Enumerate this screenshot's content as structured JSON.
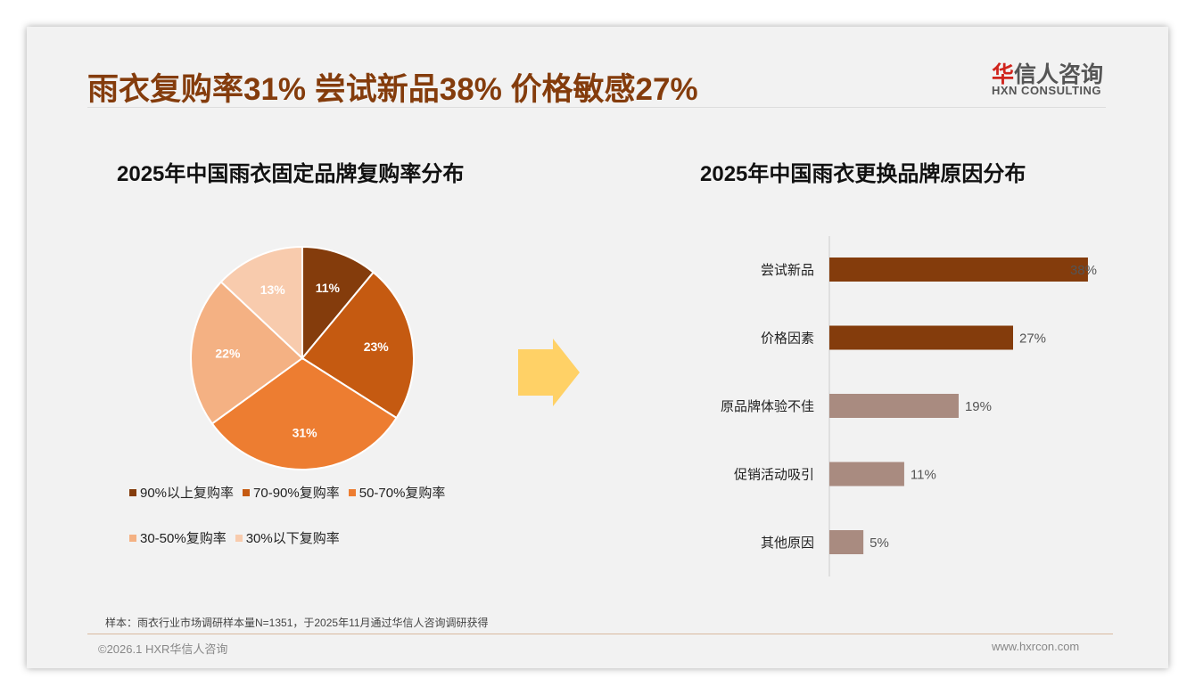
{
  "header": {
    "title": "雨衣复购率31% 尝试新品38% 价格敏感27%",
    "logo_cn_red": "华",
    "logo_cn": "信人咨询",
    "logo_en": "HXN CONSULTING"
  },
  "footer": {
    "note": "样本：雨衣行业市场调研样本量N=1351，于2025年11月通过华信人咨询调研获得",
    "copyright": "©2026.1 HXR华信人咨询",
    "website": "www.hxrcon.com"
  },
  "chart_data": [
    {
      "type": "pie",
      "title": "2025年中国雨衣固定品牌复购率分布",
      "categories": [
        "90%以上复购率",
        "70-90%复购率",
        "50-70%复购率",
        "30-50%复购率",
        "30%以下复购率"
      ],
      "values": [
        11,
        23,
        31,
        22,
        13
      ],
      "labels": [
        "11%",
        "23%",
        "31%",
        "22%",
        "13%"
      ],
      "colors": [
        "#843c0c",
        "#c55a11",
        "#ed7d31",
        "#f4b183",
        "#f8cbad"
      ],
      "legend": "bottom"
    },
    {
      "type": "bar",
      "orientation": "horizontal",
      "title": "2025年中国雨衣更换品牌原因分布",
      "categories": [
        "尝试新品",
        "价格因素",
        "原品牌体验不佳",
        "促销活动吸引",
        "其他原因"
      ],
      "values": [
        38,
        27,
        19,
        11,
        5
      ],
      "labels": [
        "38%",
        "27%",
        "19%",
        "11%",
        "5%"
      ],
      "colors": [
        "#843c0c",
        "#843c0c",
        "#a98b80",
        "#a98b80",
        "#a98b80"
      ]
    }
  ]
}
